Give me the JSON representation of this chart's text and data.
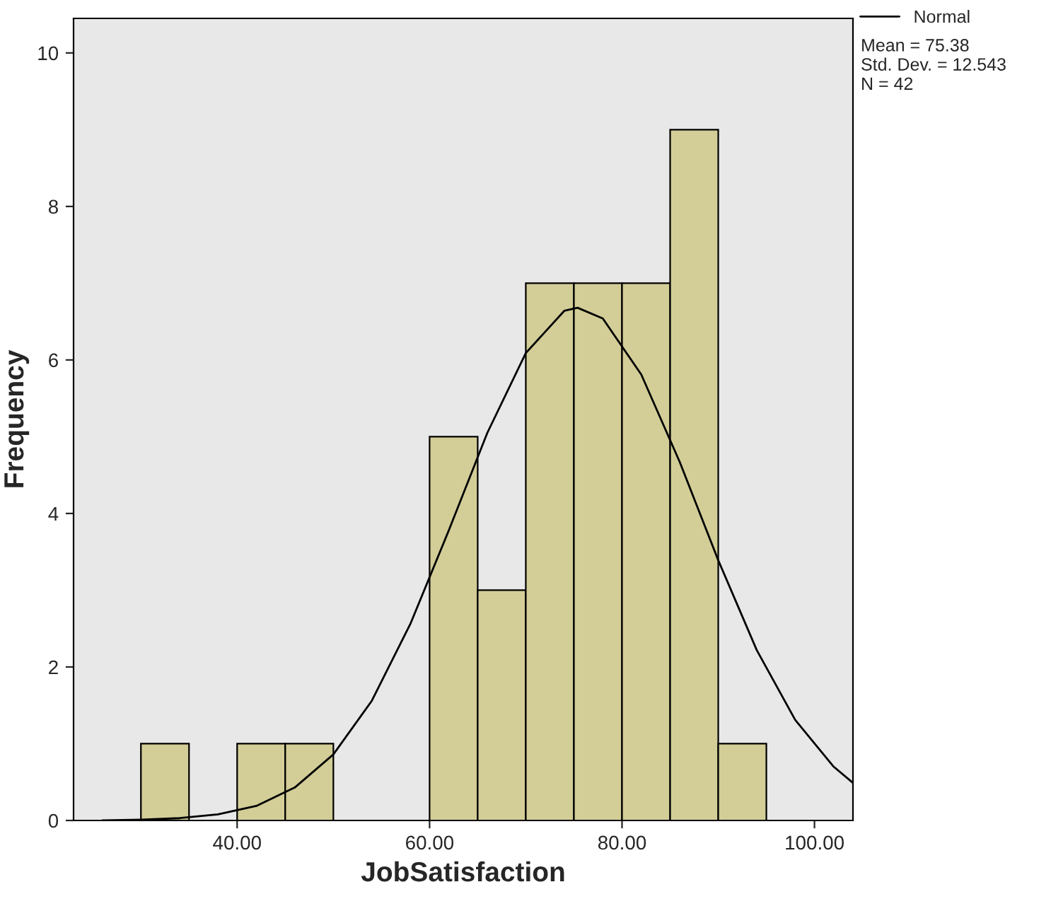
{
  "chart_data": {
    "type": "histogram",
    "xlabel": "JobSatisfaction",
    "ylabel": "Frequency",
    "bins": [
      30,
      35,
      40,
      45,
      50,
      55,
      60,
      65,
      70,
      75,
      80,
      85,
      90,
      95
    ],
    "values": [
      1,
      0,
      1,
      1,
      0,
      0,
      5,
      3,
      7,
      7,
      7,
      9,
      1
    ],
    "color": "#d3ce97",
    "series": [
      {
        "type": "line",
        "name": "Normal",
        "color": "#000000",
        "x": [
          26,
          30,
          34,
          38,
          42,
          46,
          50,
          54,
          58,
          62,
          66,
          70,
          74,
          75.38,
          78,
          82,
          86,
          90,
          94,
          98,
          102,
          104
        ],
        "values": [
          0.0,
          0.01,
          0.03,
          0.08,
          0.19,
          0.43,
          0.86,
          1.56,
          2.56,
          3.78,
          5.05,
          6.09,
          6.64,
          6.68,
          6.54,
          5.81,
          4.67,
          3.39,
          2.22,
          1.31,
          0.7,
          0.49
        ]
      }
    ],
    "xlim": [
      23,
      104
    ],
    "ylim": [
      0,
      10.45
    ],
    "xticks": [
      {
        "value": 40,
        "label": "40.00"
      },
      {
        "value": 60,
        "label": "60.00"
      },
      {
        "value": 80,
        "label": "80.00"
      },
      {
        "value": 100,
        "label": "100.00"
      }
    ],
    "yticks": [
      0,
      2,
      4,
      6,
      8,
      10
    ],
    "grid": false,
    "legend": "top right",
    "annotations": [
      "Mean = 75.38",
      "Std. Dev. = 12.543",
      "N = 42"
    ]
  }
}
